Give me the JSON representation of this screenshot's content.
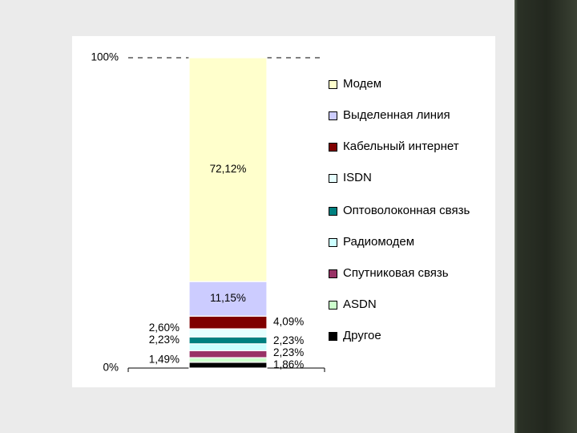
{
  "chart_data": {
    "type": "stacked_bar",
    "categories": [
      null
    ],
    "ylim": [
      0,
      100
    ],
    "yticks": [
      {
        "value": 0,
        "label": "0%"
      },
      {
        "value": 100,
        "label": "100%"
      }
    ],
    "series": [
      {
        "name": "Модем",
        "color": "#ffffcc",
        "values": [
          72.12
        ],
        "value_labels": [
          "72,12%"
        ]
      },
      {
        "name": "Выделенная линия",
        "color": "#ccccff",
        "values": [
          11.15
        ],
        "value_labels": [
          "11,15%"
        ]
      },
      {
        "name": "Кабельный интернет",
        "color": "#800000",
        "values": [
          4.09
        ],
        "value_labels": [
          "4,09%"
        ]
      },
      {
        "name": "ISDN",
        "color": "#e6ffff",
        "values": [
          2.6
        ],
        "value_labels": [
          "2,60%"
        ]
      },
      {
        "name": "Оптоволоконная связь",
        "color": "#008080",
        "values": [
          2.23
        ],
        "value_labels": [
          "2,23%"
        ]
      },
      {
        "name": "Радиомодем",
        "color": "#ccffff",
        "values": [
          2.23
        ],
        "value_labels": [
          "2,23%"
        ]
      },
      {
        "name": "Спутниковая связь",
        "color": "#993366",
        "values": [
          2.23
        ],
        "value_labels": [
          "2,23%"
        ]
      },
      {
        "name": "ASDN",
        "color": "#ccffcc",
        "values": [
          1.49
        ],
        "value_labels": [
          "1,49%"
        ]
      },
      {
        "name": "Другое",
        "color": "#000000",
        "values": [
          1.86
        ],
        "value_labels": [
          "1,86%"
        ]
      }
    ]
  }
}
